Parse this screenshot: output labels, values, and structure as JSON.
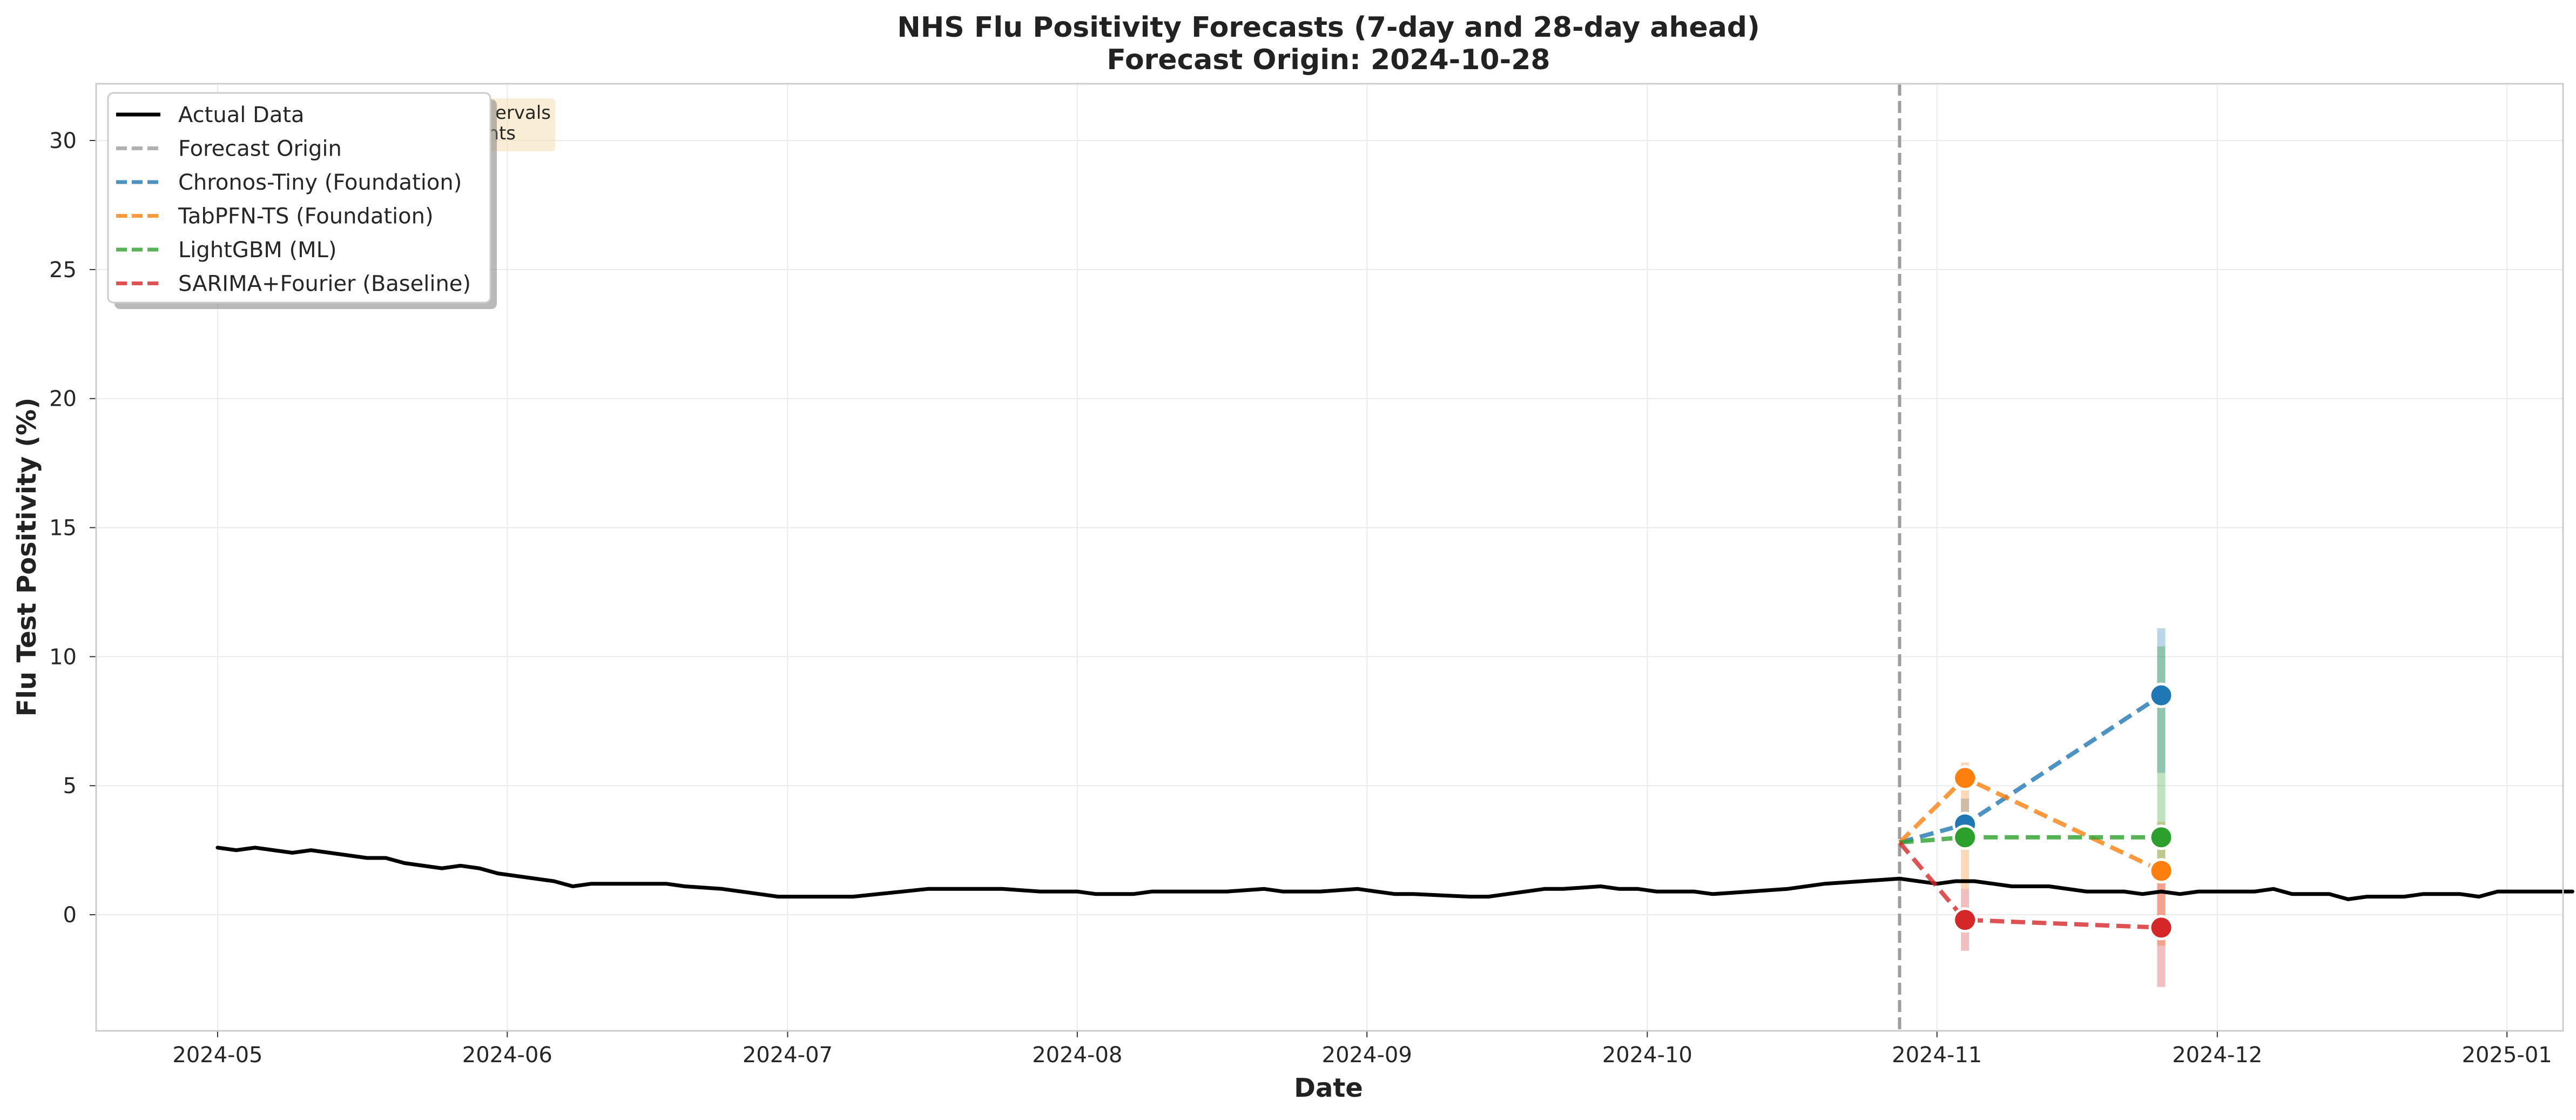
{
  "chart_data": {
    "type": "line",
    "title": "NHS Flu Positivity Forecasts (7-day and 28-day ahead)",
    "subtitle": "Forecast Origin: 2024-10-28",
    "xlabel": "Date",
    "ylabel": "Flu Test Positivity (%)",
    "x_ticks": [
      "2024-05",
      "2024-06",
      "2024-07",
      "2024-08",
      "2024-09",
      "2024-10",
      "2024-11",
      "2024-12",
      "2025-01"
    ],
    "y_ticks": [
      "0",
      "5",
      "10",
      "15",
      "20",
      "25",
      "30"
    ],
    "xlim": [
      "2024-04-18",
      "2025-01-07"
    ],
    "ylim": [
      -4.5,
      32.2
    ],
    "grid": true,
    "legend_position": "top-left",
    "note_text": [
      "ervals",
      "nts"
    ],
    "forecast_origin": "2024-10-28",
    "actual": {
      "name": "Actual Data",
      "color": "#000000",
      "points": [
        [
          "2024-05-01",
          2.6
        ],
        [
          "2024-05-03",
          2.5
        ],
        [
          "2024-05-05",
          2.6
        ],
        [
          "2024-05-09",
          2.4
        ],
        [
          "2024-05-11",
          2.5
        ],
        [
          "2024-05-17",
          2.2
        ],
        [
          "2024-05-19",
          2.2
        ],
        [
          "2024-05-21",
          2.0
        ],
        [
          "2024-05-25",
          1.8
        ],
        [
          "2024-05-27",
          1.9
        ],
        [
          "2024-05-29",
          1.8
        ],
        [
          "2024-05-31",
          1.6
        ],
        [
          "2024-06-06",
          1.3
        ],
        [
          "2024-06-08",
          1.1
        ],
        [
          "2024-06-10",
          1.2
        ],
        [
          "2024-06-18",
          1.2
        ],
        [
          "2024-06-20",
          1.1
        ],
        [
          "2024-06-24",
          1.0
        ],
        [
          "2024-06-28",
          0.8
        ],
        [
          "2024-06-30",
          0.7
        ],
        [
          "2024-07-08",
          0.7
        ],
        [
          "2024-07-16",
          1.0
        ],
        [
          "2024-07-24",
          1.0
        ],
        [
          "2024-07-28",
          0.9
        ],
        [
          "2024-08-01",
          0.9
        ],
        [
          "2024-08-03",
          0.8
        ],
        [
          "2024-08-07",
          0.8
        ],
        [
          "2024-08-09",
          0.9
        ],
        [
          "2024-08-13",
          0.9
        ],
        [
          "2024-08-17",
          0.9
        ],
        [
          "2024-08-21",
          1.0
        ],
        [
          "2024-08-23",
          0.9
        ],
        [
          "2024-08-27",
          0.9
        ],
        [
          "2024-08-31",
          1.0
        ],
        [
          "2024-09-02",
          0.9
        ],
        [
          "2024-09-04",
          0.8
        ],
        [
          "2024-09-06",
          0.8
        ],
        [
          "2024-09-12",
          0.7
        ],
        [
          "2024-09-14",
          0.7
        ],
        [
          "2024-09-16",
          0.8
        ],
        [
          "2024-09-20",
          1.0
        ],
        [
          "2024-09-22",
          1.0
        ],
        [
          "2024-09-26",
          1.1
        ],
        [
          "2024-09-28",
          1.0
        ],
        [
          "2024-09-30",
          1.0
        ],
        [
          "2024-10-02",
          0.9
        ],
        [
          "2024-10-06",
          0.9
        ],
        [
          "2024-10-08",
          0.8
        ],
        [
          "2024-10-12",
          0.9
        ],
        [
          "2024-10-16",
          1.0
        ],
        [
          "2024-10-20",
          1.2
        ],
        [
          "2024-10-24",
          1.3
        ],
        [
          "2024-10-28",
          1.4
        ],
        [
          "2024-10-30",
          1.3
        ],
        [
          "2024-11-01",
          1.2
        ],
        [
          "2024-11-03",
          1.3
        ],
        [
          "2024-11-05",
          1.3
        ],
        [
          "2024-11-07",
          1.2
        ],
        [
          "2024-11-09",
          1.1
        ],
        [
          "2024-11-13",
          1.1
        ],
        [
          "2024-11-17",
          0.9
        ],
        [
          "2024-11-21",
          0.9
        ],
        [
          "2024-11-23",
          0.8
        ],
        [
          "2024-11-25",
          0.9
        ],
        [
          "2024-11-27",
          0.8
        ],
        [
          "2024-11-29",
          0.9
        ],
        [
          "2024-12-05",
          0.9
        ],
        [
          "2024-12-07",
          1.0
        ],
        [
          "2024-12-09",
          0.8
        ],
        [
          "2024-12-13",
          0.8
        ],
        [
          "2024-12-15",
          0.6
        ],
        [
          "2024-12-17",
          0.7
        ],
        [
          "2024-12-21",
          0.7
        ],
        [
          "2024-12-23",
          0.8
        ],
        [
          "2024-12-27",
          0.8
        ],
        [
          "2024-12-29",
          0.7
        ],
        [
          "2024-12-31",
          0.9
        ],
        [
          "2025-01-08",
          0.9
        ]
      ]
    },
    "series": [
      {
        "name": "Forecast Origin",
        "color": "#9e9e9e"
      },
      {
        "name": "Chronos-Tiny (Foundation)",
        "color": "#1f77b4",
        "points": [
          [
            "2024-10-28",
            2.8
          ],
          [
            "2024-11-04",
            3.5
          ],
          [
            "2024-11-25",
            8.5
          ]
        ],
        "intervals": [
          [
            "2024-11-04",
            2.6,
            4.5
          ],
          [
            "2024-11-25",
            5.5,
            11.1
          ]
        ]
      },
      {
        "name": "TabPFN-TS (Foundation)",
        "color": "#ff7f0e",
        "points": [
          [
            "2024-10-28",
            2.8
          ],
          [
            "2024-11-04",
            5.3
          ],
          [
            "2024-11-25",
            1.7
          ]
        ],
        "intervals": [
          [
            "2024-11-04",
            1.0,
            5.9
          ],
          [
            "2024-11-25",
            -1.2,
            3.6
          ]
        ]
      },
      {
        "name": "LightGBM (ML)",
        "color": "#2ca02c",
        "points": [
          [
            "2024-10-28",
            2.8
          ],
          [
            "2024-11-04",
            3.0
          ],
          [
            "2024-11-25",
            3.0
          ]
        ],
        "intervals": [
          [
            "2024-11-04",
            2.7,
            3.4
          ],
          [
            "2024-11-25",
            2.0,
            10.4
          ]
        ]
      },
      {
        "name": "SARIMA+Fourier (Baseline)",
        "color": "#d62728",
        "points": [
          [
            "2024-10-28",
            2.8
          ],
          [
            "2024-11-04",
            -0.2
          ],
          [
            "2024-11-25",
            -0.5
          ]
        ],
        "intervals": [
          [
            "2024-11-04",
            -1.4,
            1.0
          ],
          [
            "2024-11-25",
            -2.8,
            1.5
          ]
        ]
      }
    ]
  }
}
